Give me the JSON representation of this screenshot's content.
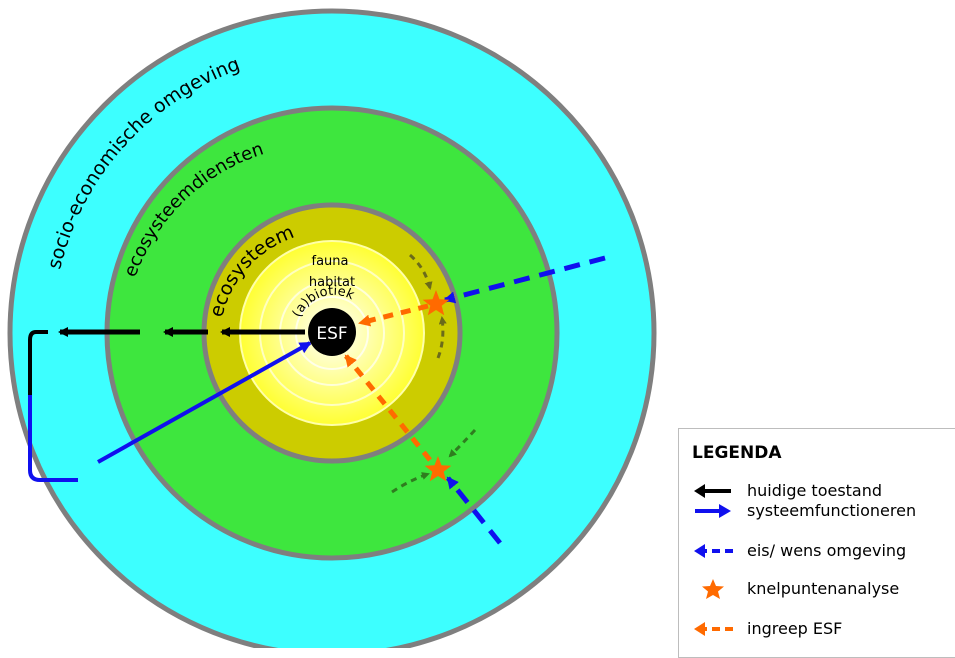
{
  "diagram": {
    "rings": {
      "outer": "socio-economische omgeving",
      "middle": "ecosysteemdiensten",
      "inner": "ecosysteem"
    },
    "layers": {
      "fauna": "fauna",
      "habitat": "habitat",
      "abiotiek": "(a)biotiek"
    },
    "core": "ESF"
  },
  "legend": {
    "title": "LEGENDA",
    "items": [
      {
        "label": "huidige toestand",
        "icon": "black-arrow"
      },
      {
        "label": "systeemfunctioneren",
        "icon": "blue-arrow"
      },
      {
        "label": "eis/ wens omgeving",
        "icon": "blue-dashed-arrow"
      },
      {
        "label": "knelpuntenanalyse",
        "icon": "orange-star"
      },
      {
        "label": "ingreep ESF",
        "icon": "orange-dashed-arrow"
      }
    ]
  },
  "colors": {
    "outer_ring": "#3dffff",
    "middle_ring": "#3ee63e",
    "inner_ring": "#cccc00",
    "border": "#7f7f7f",
    "core": "#000000",
    "black_arrow": "#000000",
    "blue_arrow": "#1010ee",
    "orange": "#ff6a00",
    "dark_green_arrow": "#2f7d1f",
    "olive_arrow": "#6b6b1a"
  }
}
